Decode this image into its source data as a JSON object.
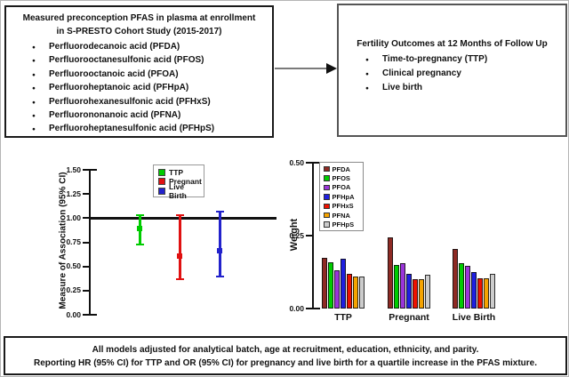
{
  "exposure_box": {
    "title_line1": "Measured preconception PFAS in plasma at enrollment",
    "title_line2": "in S-PRESTO Cohort Study (2015-2017)",
    "items": [
      "Perfluorodecanoic acid (PFDA)",
      "Perfluorooctanesulfonic acid (PFOS)",
      "Perfluorooctanoic acid (PFOA)",
      "Perfluoroheptanoic acid (PFHpA)",
      "Perfluorohexanesulfonic acid (PFHxS)",
      "Perfluorononanoic acid (PFNA)",
      "Perfluoroheptanesulfonic acid (PFHpS)"
    ]
  },
  "outcome_box": {
    "title": "Fertility Outcomes at 12 Months of Follow Up",
    "items": [
      "Time-to-pregnancy (TTP)",
      "Clinical pregnancy",
      "Live birth"
    ]
  },
  "footnote": {
    "line1": "All models adjusted for analytical batch, age at recruitment, education, ethnicity, and parity.",
    "line2": "Reporting HR (95% CI) for TTP and OR (95% CI) for pregnancy and live birth for a quartile increase in the PFAS mixture."
  },
  "chart_data": [
    {
      "type": "scatter",
      "subtype": "forest-errorbar",
      "title": "",
      "xlabel": "",
      "ylabel": "Measure of Association (95% CI)",
      "ylim": [
        0,
        1.5
      ],
      "ytick_labels": [
        "1.50",
        "1.25",
        "1.00",
        "0.75",
        "0.50",
        "0.25",
        "0.00"
      ],
      "ytick_values": [
        1.5,
        1.25,
        1.0,
        0.75,
        0.5,
        0.25,
        0
      ],
      "reference_line": 1.0,
      "grid": false,
      "legend_position": "top-center",
      "series": [
        {
          "name": "TTP",
          "color": "#00cc00",
          "estimate": 0.89,
          "ci_low": 0.73,
          "ci_high": 1.03
        },
        {
          "name": "Pregnant",
          "color": "#e01111",
          "estimate": 0.61,
          "ci_low": 0.37,
          "ci_high": 1.03
        },
        {
          "name": "Live Birth",
          "color": "#2222cc",
          "estimate": 0.66,
          "ci_low": 0.4,
          "ci_high": 1.07
        }
      ]
    },
    {
      "type": "bar",
      "title": "",
      "xlabel": "",
      "ylabel": "Weight",
      "ylim": [
        0,
        0.5
      ],
      "ytick_labels": [
        "0.50",
        "0.25",
        "0.00"
      ],
      "ytick_values": [
        0.5,
        0.25,
        0
      ],
      "categories": [
        "TTP",
        "Pregnant",
        "Live Birth"
      ],
      "grid": false,
      "legend_position": "top-left",
      "series": [
        {
          "name": "PFDA",
          "color": "#8e2a24",
          "values": [
            0.175,
            0.245,
            0.205
          ]
        },
        {
          "name": "PFOS",
          "color": "#00cc00",
          "values": [
            0.16,
            0.15,
            0.155
          ]
        },
        {
          "name": "PFOA",
          "color": "#9a35d9",
          "values": [
            0.13,
            0.155,
            0.145
          ]
        },
        {
          "name": "PFHpA",
          "color": "#1f1fe0",
          "values": [
            0.17,
            0.12,
            0.125
          ]
        },
        {
          "name": "PFHxS",
          "color": "#ee1100",
          "values": [
            0.12,
            0.1,
            0.105
          ]
        },
        {
          "name": "PFNA",
          "color": "#f5a300",
          "values": [
            0.11,
            0.1,
            0.105
          ]
        },
        {
          "name": "PFHpS",
          "color": "#cccccc",
          "values": [
            0.11,
            0.115,
            0.12
          ]
        }
      ]
    }
  ]
}
